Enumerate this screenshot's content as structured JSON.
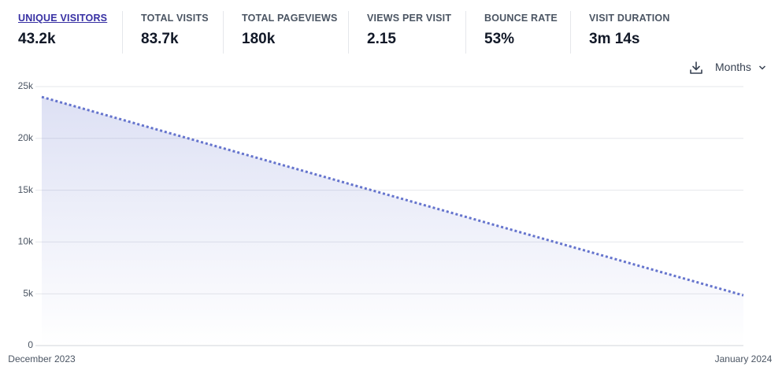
{
  "stats": [
    {
      "label": "UNIQUE VISITORS",
      "value": "43.2k"
    },
    {
      "label": "TOTAL VISITS",
      "value": "83.7k"
    },
    {
      "label": "TOTAL PAGEVIEWS",
      "value": "180k"
    },
    {
      "label": "VIEWS PER VISIT",
      "value": "2.15"
    },
    {
      "label": "BOUNCE RATE",
      "value": "53%"
    },
    {
      "label": "VISIT DURATION",
      "value": "3m 14s"
    }
  ],
  "controls": {
    "interval": "Months"
  },
  "chart_data": {
    "type": "line",
    "categories": [
      "December 2023",
      "January 2024"
    ],
    "values": [
      24000,
      4850
    ],
    "color": "#6574cd",
    "line_style": "dotted",
    "area": true,
    "ylim": [
      0,
      25000
    ],
    "yticks": [
      0,
      {
        "value": 5000,
        "label": "5k"
      },
      {
        "value": 10000,
        "label": "10k"
      },
      {
        "value": 15000,
        "label": "15k"
      },
      {
        "value": 20000,
        "label": "20k"
      },
      {
        "value": 25000,
        "label": "25k"
      }
    ],
    "grid": true
  }
}
